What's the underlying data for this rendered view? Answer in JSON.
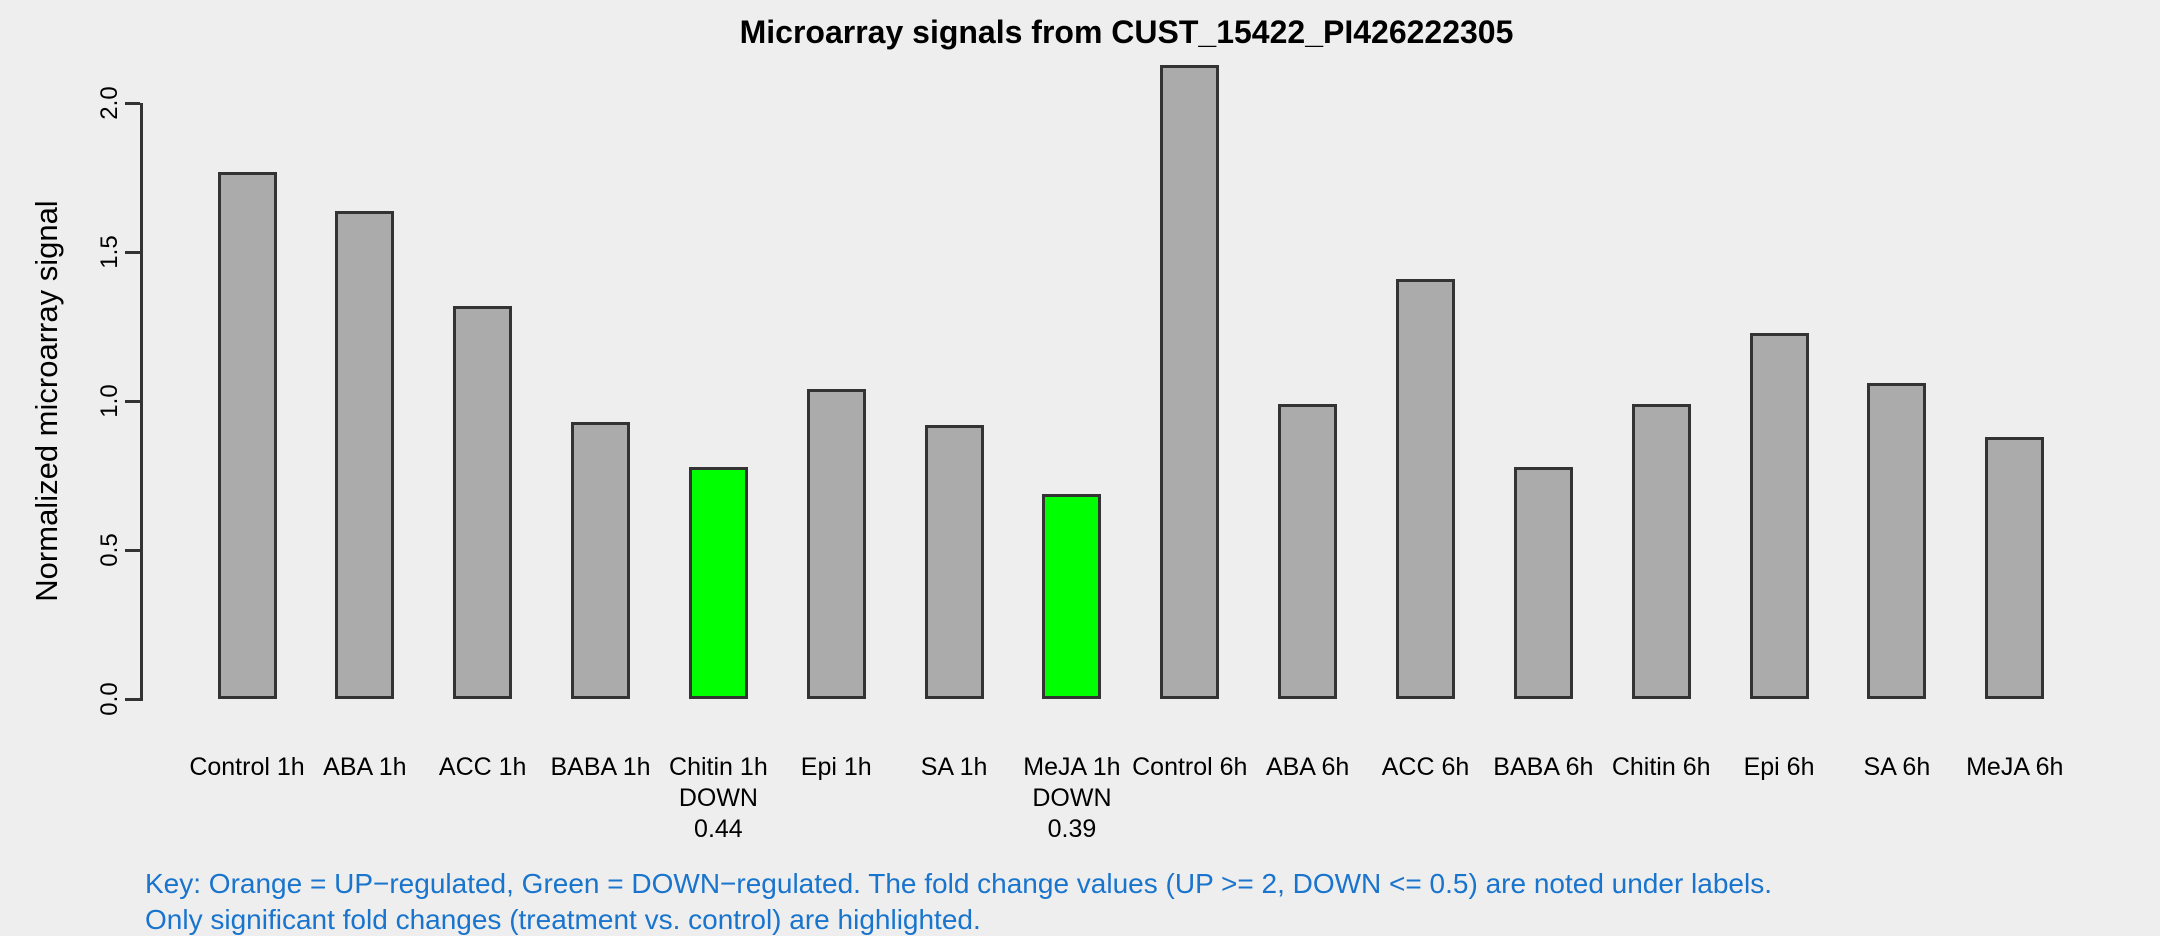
{
  "chart_data": {
    "type": "bar",
    "title": "Microarray signals from CUST_15422_PI426222305",
    "xlabel": "",
    "ylabel": "Normalized microarray signal",
    "y_ticks": [
      {
        "label": "0.0",
        "value": 0
      },
      {
        "label": "0.5",
        "value": 0.5
      },
      {
        "label": "1.0",
        "value": 1
      },
      {
        "label": "1.5",
        "value": 1.5
      },
      {
        "label": "2.0",
        "value": 2
      }
    ],
    "ylim": [
      0,
      2.15
    ],
    "grid": false,
    "legend_position": "none",
    "bars": [
      {
        "label": "Control 1h",
        "value": 1.77,
        "state": "normal"
      },
      {
        "label": "ABA 1h",
        "value": 1.64,
        "state": "normal"
      },
      {
        "label": "ACC 1h",
        "value": 1.32,
        "state": "normal"
      },
      {
        "label": "BABA 1h",
        "value": 0.93,
        "state": "normal"
      },
      {
        "label": "Chitin 1h",
        "value": 0.78,
        "state": "down",
        "note": "DOWN",
        "fold_change": "0.44"
      },
      {
        "label": "Epi 1h",
        "value": 1.04,
        "state": "normal"
      },
      {
        "label": "SA 1h",
        "value": 0.92,
        "state": "normal"
      },
      {
        "label": "MeJA 1h",
        "value": 0.69,
        "state": "down",
        "note": "DOWN",
        "fold_change": "0.39"
      },
      {
        "label": "Control 6h",
        "value": 2.13,
        "state": "normal"
      },
      {
        "label": "ABA 6h",
        "value": 0.99,
        "state": "normal"
      },
      {
        "label": "ACC 6h",
        "value": 1.41,
        "state": "normal"
      },
      {
        "label": "BABA 6h",
        "value": 0.78,
        "state": "normal"
      },
      {
        "label": "Chitin 6h",
        "value": 0.99,
        "state": "normal"
      },
      {
        "label": "Epi 6h",
        "value": 1.23,
        "state": "normal"
      },
      {
        "label": "SA 6h",
        "value": 1.06,
        "state": "normal"
      },
      {
        "label": "MeJA 6h",
        "value": 0.88,
        "state": "normal"
      }
    ],
    "colors": {
      "background": "#EEEEEE",
      "bar_fill": "#ABABAB",
      "bar_border": "#333333",
      "down_fill": "#00FF00",
      "axis": "#333333",
      "text": "#000000",
      "key_text": "#1874CD"
    }
  },
  "key": {
    "line1": "Key: Orange = UP−regulated, Green = DOWN−regulated. The fold change values (UP >= 2, DOWN <= 0.5) are noted under labels.",
    "line2": "Only significant fold changes (treatment vs. control) are highlighted."
  }
}
